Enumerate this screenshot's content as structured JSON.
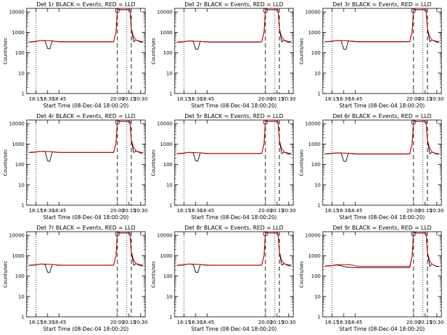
{
  "figure": {
    "x_ticks": [
      "18:15",
      "18:30",
      "18:45",
      "20:00",
      "20:15",
      "20:30"
    ],
    "y_ticks": [
      "1",
      "10",
      "100",
      "1000",
      "10000"
    ],
    "colors": {
      "events": "#000000",
      "lld": "#cc0000",
      "axes": "#000000"
    }
  },
  "chart_data": [
    {
      "type": "line",
      "panel": "Det 1r",
      "title": "Det 1r BLACK = Events, RED = LLD",
      "xlabel": "Start Time (08-Dec-04 18:00:20)",
      "ylabel": "Counts/sec",
      "yscale": "log",
      "ylim": [
        1,
        15000
      ],
      "xlim": [
        18.05,
        20.6
      ],
      "dotted_vlines": [
        18.25,
        20.2
      ],
      "dashed_vlines": [
        20.0,
        20.3
      ],
      "series": [
        {
          "name": "BLACK = Events",
          "x": [
            18.1,
            18.25,
            18.35,
            18.45,
            18.5,
            18.55,
            18.6,
            18.65,
            18.7,
            18.8,
            19.85,
            19.92,
            19.97,
            20.0,
            20.27,
            20.3,
            20.35,
            20.4,
            20.5,
            20.55
          ],
          "y": [
            330,
            350,
            400,
            380,
            160,
            155,
            380,
            370,
            350,
            340,
            340,
            345,
            1000,
            13000,
            13000,
            1500,
            350,
            420,
            330,
            330
          ]
        },
        {
          "name": "RED = LLD",
          "x": [
            18.1,
            18.25,
            18.35,
            18.5,
            18.6,
            18.7,
            18.8,
            19.85,
            19.92,
            19.97,
            20.0,
            20.27,
            20.3,
            20.35,
            20.4,
            20.5,
            20.55
          ],
          "y": [
            340,
            360,
            400,
            390,
            380,
            360,
            350,
            350,
            355,
            1000,
            13000,
            13000,
            1500,
            600,
            420,
            360,
            360
          ]
        }
      ]
    },
    {
      "type": "line",
      "panel": "Det 2r",
      "title": "Det 2r BLACK = Events, RED = LLD",
      "xlabel": "Start Time (08-Dec-04 18:00:20)",
      "ylabel": "Counts/sec",
      "yscale": "log",
      "ylim": [
        1,
        15000
      ],
      "xlim": [
        18.05,
        20.6
      ],
      "dotted_vlines": [
        18.25,
        20.2
      ],
      "dashed_vlines": [
        20.0,
        20.3
      ],
      "series": [
        {
          "name": "BLACK = Events",
          "x": [
            18.1,
            18.25,
            18.35,
            18.45,
            18.5,
            18.55,
            18.6,
            18.65,
            18.7,
            18.8,
            19.85,
            19.92,
            19.97,
            20.0,
            20.27,
            20.3,
            20.35,
            20.4,
            20.5,
            20.55
          ],
          "y": [
            320,
            340,
            380,
            360,
            150,
            145,
            360,
            350,
            340,
            330,
            330,
            335,
            1000,
            13000,
            13000,
            1500,
            340,
            410,
            320,
            320
          ]
        },
        {
          "name": "RED = LLD",
          "x": [
            18.1,
            18.25,
            18.35,
            18.5,
            18.6,
            18.7,
            18.8,
            19.85,
            19.92,
            19.97,
            20.0,
            20.27,
            20.3,
            20.35,
            20.4,
            20.5,
            20.55
          ],
          "y": [
            330,
            350,
            380,
            370,
            360,
            350,
            340,
            340,
            345,
            1000,
            13000,
            13000,
            1500,
            600,
            410,
            350,
            350
          ]
        }
      ]
    },
    {
      "type": "line",
      "panel": "Det 3r",
      "title": "Det 3r BLACK = Events, RED = LLD",
      "xlabel": "Start Time (08-Dec-04 18:00:20)",
      "ylabel": "Counts/sec",
      "yscale": "log",
      "ylim": [
        1,
        15000
      ],
      "xlim": [
        18.05,
        20.6
      ],
      "dotted_vlines": [
        18.25,
        20.2
      ],
      "dashed_vlines": [
        20.0,
        20.3
      ],
      "series": [
        {
          "name": "BLACK = Events",
          "x": [
            18.1,
            18.25,
            18.35,
            18.45,
            18.5,
            18.55,
            18.6,
            18.65,
            18.7,
            18.8,
            19.85,
            19.92,
            19.97,
            20.0,
            20.27,
            20.3,
            20.35,
            20.4,
            20.5,
            20.55
          ],
          "y": [
            340,
            360,
            400,
            380,
            150,
            145,
            380,
            370,
            355,
            345,
            345,
            350,
            1000,
            13000,
            13000,
            1500,
            350,
            420,
            330,
            330
          ]
        },
        {
          "name": "RED = LLD",
          "x": [
            18.1,
            18.25,
            18.35,
            18.5,
            18.6,
            18.7,
            18.8,
            19.85,
            19.92,
            19.97,
            20.0,
            20.27,
            20.3,
            20.35,
            20.4,
            20.5,
            20.55
          ],
          "y": [
            350,
            370,
            400,
            390,
            380,
            365,
            355,
            355,
            360,
            1000,
            13000,
            13000,
            1500,
            600,
            420,
            360,
            360
          ]
        }
      ]
    },
    {
      "type": "line",
      "panel": "Det 4r",
      "title": "Det 4r BLACK = Events, RED = LLD",
      "xlabel": "Start Time (08-Dec-04 18:00:20)",
      "ylabel": "Counts/sec",
      "yscale": "log",
      "ylim": [
        1,
        15000
      ],
      "xlim": [
        18.05,
        20.6
      ],
      "dotted_vlines": [
        18.25,
        20.2
      ],
      "dashed_vlines": [
        20.0,
        20.3
      ],
      "series": [
        {
          "name": "BLACK = Events",
          "x": [
            18.1,
            18.25,
            18.35,
            18.45,
            18.5,
            18.55,
            18.6,
            18.65,
            18.7,
            18.8,
            19.85,
            19.92,
            19.97,
            20.0,
            20.27,
            20.3,
            20.35,
            20.4,
            20.5,
            20.55
          ],
          "y": [
            380,
            400,
            440,
            420,
            150,
            140,
            420,
            400,
            390,
            380,
            380,
            385,
            1100,
            13000,
            13000,
            1600,
            380,
            460,
            360,
            360
          ]
        },
        {
          "name": "RED = LLD",
          "x": [
            18.1,
            18.25,
            18.35,
            18.5,
            18.6,
            18.7,
            18.8,
            19.85,
            19.92,
            19.97,
            20.0,
            20.27,
            20.3,
            20.35,
            20.4,
            20.5,
            20.55
          ],
          "y": [
            390,
            410,
            440,
            430,
            420,
            400,
            390,
            390,
            395,
            1100,
            13000,
            13000,
            1600,
            650,
            460,
            390,
            390
          ]
        }
      ]
    },
    {
      "type": "line",
      "panel": "Det 5r",
      "title": "Det 5r BLACK = Events, RED = LLD",
      "xlabel": "Start Time (08-Dec-04 18:00:20)",
      "ylabel": "Counts/sec",
      "yscale": "log",
      "ylim": [
        1,
        15000
      ],
      "xlim": [
        18.05,
        20.6
      ],
      "dotted_vlines": [
        18.25,
        20.2
      ],
      "dashed_vlines": [
        20.0,
        20.3
      ],
      "series": [
        {
          "name": "BLACK = Events",
          "x": [
            18.1,
            18.25,
            18.35,
            18.45,
            18.5,
            18.55,
            18.6,
            18.65,
            18.7,
            18.8,
            19.85,
            19.92,
            19.97,
            20.0,
            20.27,
            20.3,
            20.35,
            20.4,
            20.5,
            20.55
          ],
          "y": [
            330,
            350,
            390,
            370,
            150,
            145,
            370,
            360,
            345,
            335,
            335,
            340,
            1000,
            13000,
            13000,
            1500,
            340,
            410,
            320,
            320
          ]
        },
        {
          "name": "RED = LLD",
          "x": [
            18.1,
            18.25,
            18.35,
            18.5,
            18.6,
            18.7,
            18.8,
            19.85,
            19.92,
            19.97,
            20.0,
            20.27,
            20.3,
            20.35,
            20.4,
            20.5,
            20.55
          ],
          "y": [
            340,
            360,
            390,
            380,
            370,
            355,
            345,
            345,
            350,
            1000,
            13000,
            13000,
            1500,
            600,
            410,
            350,
            350
          ]
        }
      ]
    },
    {
      "type": "line",
      "panel": "Det 6r",
      "title": "Det 6r BLACK = Events, RED = LLD",
      "xlabel": "Start Time (08-Dec-04 18:00:20)",
      "ylabel": "Counts/sec",
      "yscale": "log",
      "ylim": [
        1,
        15000
      ],
      "xlim": [
        18.05,
        20.6
      ],
      "dotted_vlines": [
        18.25,
        20.2
      ],
      "dashed_vlines": [
        20.0,
        20.3
      ],
      "series": [
        {
          "name": "BLACK = Events",
          "x": [
            18.1,
            18.25,
            18.35,
            18.45,
            18.5,
            18.55,
            18.6,
            18.65,
            18.7,
            18.8,
            19.85,
            19.92,
            19.97,
            20.0,
            20.27,
            20.3,
            20.35,
            20.4,
            20.5,
            20.55
          ],
          "y": [
            320,
            340,
            370,
            350,
            145,
            140,
            350,
            340,
            330,
            320,
            320,
            325,
            1000,
            13000,
            13000,
            1500,
            330,
            400,
            320,
            320
          ]
        },
        {
          "name": "RED = LLD",
          "x": [
            18.1,
            18.25,
            18.35,
            18.5,
            18.6,
            18.7,
            18.8,
            19.85,
            19.92,
            19.97,
            20.0,
            20.27,
            20.3,
            20.35,
            20.4,
            20.5,
            20.55
          ],
          "y": [
            330,
            350,
            370,
            360,
            350,
            340,
            330,
            330,
            335,
            1000,
            13000,
            13000,
            1500,
            600,
            400,
            340,
            340
          ]
        }
      ]
    },
    {
      "type": "line",
      "panel": "Det 7r",
      "title": "Det 7r BLACK = Events, RED = LLD",
      "xlabel": "Start Time (08-Dec-04 18:00:20)",
      "ylabel": "Counts/sec",
      "yscale": "log",
      "ylim": [
        1,
        15000
      ],
      "xlim": [
        18.05,
        20.6
      ],
      "dotted_vlines": [
        18.25,
        20.2
      ],
      "dashed_vlines": [
        20.0,
        20.3
      ],
      "series": [
        {
          "name": "BLACK = Events",
          "x": [
            18.1,
            18.25,
            18.35,
            18.45,
            18.5,
            18.55,
            18.6,
            18.65,
            18.7,
            18.8,
            19.85,
            19.92,
            19.97,
            20.0,
            20.27,
            20.3,
            20.35,
            20.4,
            20.5,
            20.55
          ],
          "y": [
            330,
            350,
            390,
            370,
            155,
            150,
            370,
            360,
            345,
            335,
            335,
            340,
            1000,
            13000,
            13000,
            1500,
            340,
            410,
            320,
            320
          ]
        },
        {
          "name": "RED = LLD",
          "x": [
            18.1,
            18.25,
            18.35,
            18.5,
            18.6,
            18.7,
            18.8,
            19.85,
            19.92,
            19.97,
            20.0,
            20.27,
            20.3,
            20.35,
            20.4,
            20.5,
            20.55
          ],
          "y": [
            340,
            360,
            390,
            380,
            370,
            355,
            345,
            345,
            350,
            1000,
            13000,
            13000,
            1500,
            600,
            410,
            350,
            350
          ]
        }
      ]
    },
    {
      "type": "line",
      "panel": "Det 8r",
      "title": "Det 8r BLACK = Events, RED = LLD",
      "xlabel": "Start Time (08-Dec-04 18:00:20)",
      "ylabel": "Counts/sec",
      "yscale": "log",
      "ylim": [
        1,
        15000
      ],
      "xlim": [
        18.05,
        20.6
      ],
      "dotted_vlines": [
        18.25,
        20.2
      ],
      "dashed_vlines": [
        20.0,
        20.3
      ],
      "series": [
        {
          "name": "BLACK = Events",
          "x": [
            18.1,
            18.25,
            18.35,
            18.45,
            18.5,
            18.55,
            18.6,
            18.65,
            18.7,
            18.8,
            19.85,
            19.92,
            19.97,
            20.0,
            20.27,
            20.3,
            20.35,
            20.4,
            20.5,
            20.55
          ],
          "y": [
            330,
            350,
            390,
            370,
            155,
            150,
            370,
            360,
            345,
            335,
            335,
            340,
            1000,
            13000,
            13000,
            1500,
            340,
            410,
            320,
            320
          ]
        },
        {
          "name": "RED = LLD",
          "x": [
            18.1,
            18.25,
            18.35,
            18.5,
            18.6,
            18.7,
            18.8,
            19.85,
            19.92,
            19.97,
            20.0,
            20.27,
            20.3,
            20.35,
            20.4,
            20.5,
            20.55
          ],
          "y": [
            340,
            360,
            390,
            380,
            370,
            355,
            345,
            345,
            350,
            1000,
            13000,
            13000,
            1500,
            600,
            410,
            350,
            350
          ]
        }
      ]
    },
    {
      "type": "line",
      "panel": "Det 9r",
      "title": "Det 9r BLACK = Events, RED = LLD",
      "xlabel": "Start Time (08-Dec-04 18:00:20)",
      "ylabel": "Counts/sec",
      "yscale": "log",
      "ylim": [
        1,
        15000
      ],
      "xlim": [
        18.05,
        20.6
      ],
      "dotted_vlines": [
        18.25,
        20.2
      ],
      "dashed_vlines": [
        20.0,
        20.3
      ],
      "series": [
        {
          "name": "BLACK = Events",
          "x": [
            18.1,
            18.25,
            18.35,
            18.45,
            18.55,
            18.7,
            18.8,
            19.85,
            19.92,
            19.97,
            20.0,
            20.27,
            20.3,
            20.35,
            20.4,
            20.5,
            20.55
          ],
          "y": [
            300,
            320,
            350,
            320,
            280,
            260,
            255,
            255,
            260,
            900,
            13000,
            13000,
            1400,
            300,
            380,
            290,
            290
          ]
        },
        {
          "name": "RED = LLD",
          "x": [
            18.1,
            18.25,
            18.35,
            18.5,
            18.6,
            18.7,
            18.8,
            19.85,
            19.92,
            19.97,
            20.0,
            20.27,
            20.3,
            20.35,
            20.4,
            20.5,
            20.55
          ],
          "y": [
            310,
            330,
            360,
            370,
            360,
            340,
            300,
            300,
            305,
            900,
            13000,
            13000,
            1400,
            550,
            380,
            300,
            300
          ]
        }
      ]
    }
  ]
}
